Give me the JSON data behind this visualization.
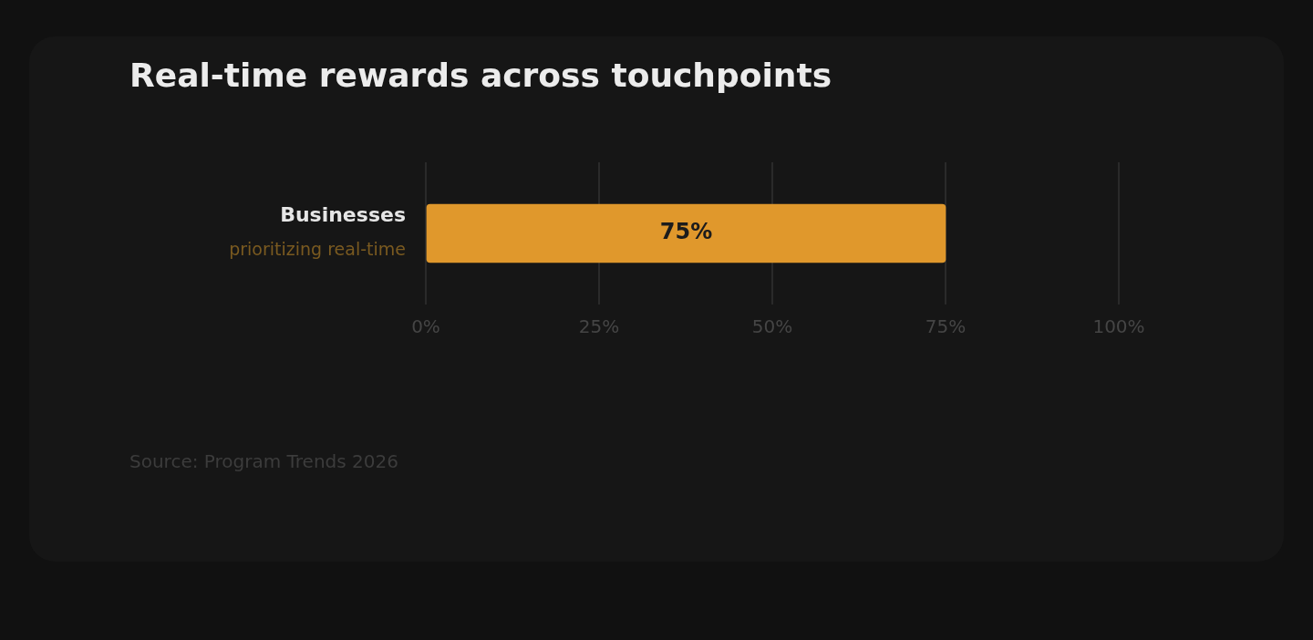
{
  "chart_data": {
    "type": "bar",
    "orientation": "horizontal",
    "title": "Real-time rewards across touchpoints",
    "categories": [
      "Businesses\nprioritizing real-time"
    ],
    "series": [
      {
        "color": "#e0982c",
        "values": [
          75
        ]
      }
    ],
    "value_labels": [
      "75%"
    ],
    "xlim": [
      0,
      100
    ],
    "xticks": [
      {
        "value": 0,
        "label": "0%"
      },
      {
        "value": 25,
        "label": "25%"
      },
      {
        "value": 50,
        "label": "50%"
      },
      {
        "value": 75,
        "label": "75%"
      },
      {
        "value": 100,
        "label": "100%"
      }
    ],
    "grid": "x",
    "legend": false,
    "annotations": [
      "Source: Program Trends 2026"
    ]
  }
}
